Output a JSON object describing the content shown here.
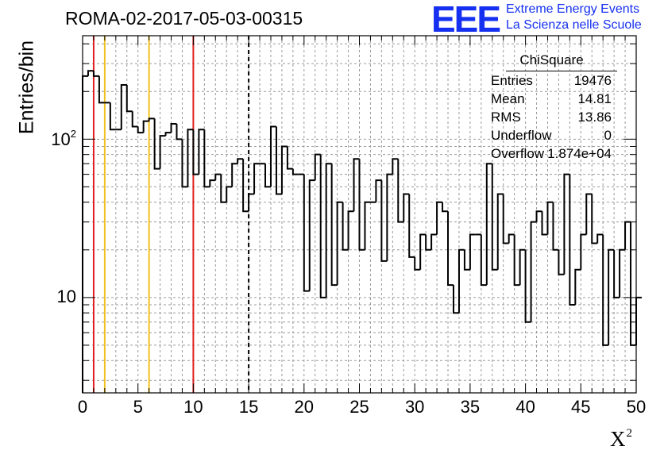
{
  "header": {
    "title": "ROMA-02-2017-05-03-00315",
    "logo_text": "EEE",
    "org_line1": "Extreme Energy Events",
    "org_line2": "La Scienza nelle Scuole",
    "brand_color": "#1530f0"
  },
  "stats_box": {
    "title": "ChiSquare",
    "rows": [
      {
        "label": "Entries",
        "value": "19476"
      },
      {
        "label": "Mean",
        "value": "14.81"
      },
      {
        "label": "RMS",
        "value": "13.86"
      },
      {
        "label": "Underflow",
        "value": "0"
      },
      {
        "label": "Overflow",
        "value": "1.874e+04"
      }
    ]
  },
  "chart_data": {
    "type": "histogram",
    "title": "ROMA-02-2017-05-03-00315",
    "xlabel": "X",
    "xlabel_sup": "2",
    "ylabel": "Entries/bin",
    "xlim": [
      0,
      50
    ],
    "ylim": [
      2.5,
      450
    ],
    "yscale": "log",
    "grid": true,
    "bin_width": 0.5,
    "x_ticks": [
      "0",
      "5",
      "10",
      "15",
      "20",
      "25",
      "30",
      "35",
      "40",
      "45",
      "50"
    ],
    "y_ticks": [
      {
        "value": 100,
        "base": "10",
        "exp": "2"
      },
      {
        "value": 10,
        "base": "10",
        "exp": ""
      }
    ],
    "values": [
      250,
      270,
      250,
      170,
      170,
      115,
      115,
      220,
      150,
      120,
      110,
      130,
      135,
      65,
      105,
      110,
      125,
      100,
      50,
      115,
      60,
      115,
      50,
      55,
      60,
      40,
      50,
      70,
      75,
      35,
      45,
      70,
      70,
      50,
      120,
      45,
      90,
      65,
      60,
      60,
      11,
      55,
      80,
      10,
      70,
      12,
      40,
      20,
      35,
      75,
      20,
      40,
      40,
      55,
      17,
      60,
      75,
      30,
      45,
      18,
      15,
      25,
      20,
      25,
      40,
      35,
      12,
      8,
      20,
      15,
      25,
      25,
      12,
      70,
      15,
      45,
      22,
      25,
      12,
      20,
      7,
      30,
      35,
      25,
      40,
      20,
      14,
      60,
      9,
      15,
      25,
      45,
      22,
      25,
      5,
      20,
      10,
      20,
      30,
      5,
      10
    ],
    "line_color": "#000000",
    "vertical_lines": [
      {
        "x": 1,
        "color": "#e02020",
        "style": "solid"
      },
      {
        "x": 2,
        "color": "#f0c020",
        "style": "solid"
      },
      {
        "x": 6,
        "color": "#f0c020",
        "style": "solid"
      },
      {
        "x": 10,
        "color": "#e02020",
        "style": "solid"
      },
      {
        "x": 15,
        "color": "#000000",
        "style": "dashed"
      }
    ]
  }
}
